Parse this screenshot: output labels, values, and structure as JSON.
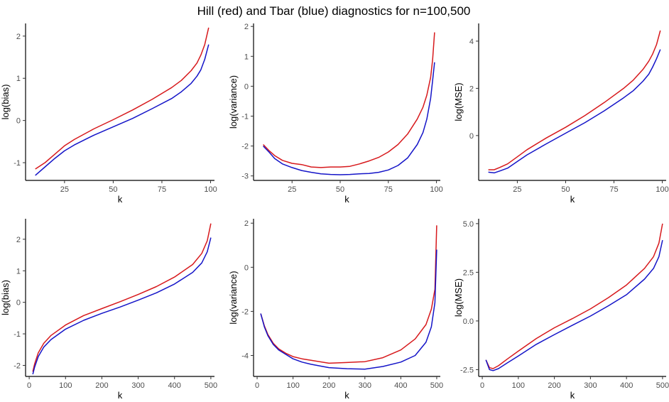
{
  "chart_data": {
    "title": "Hill (red) and Tbar (blue) diagnostics for n=100,500",
    "colors": {
      "hill": "#d7191c",
      "tbar": "#1414c8"
    },
    "panels": [
      {
        "id": "n100-bias",
        "type": "line",
        "xlabel": "k",
        "ylabel": "log(bias)",
        "xlim": [
          5,
          102
        ],
        "ylim": [
          -1.42,
          2.3
        ],
        "xticks": [
          25,
          50,
          75,
          100
        ],
        "yticks": [
          -1,
          0,
          1,
          2
        ],
        "series": [
          {
            "name": "Hill",
            "color": "#d7191c",
            "x": [
              10,
              15,
              20,
              25,
              30,
              40,
              50,
              60,
              70,
              80,
              85,
              90,
              93,
              95,
              97,
              99
            ],
            "y": [
              -1.15,
              -1.0,
              -0.8,
              -0.6,
              -0.45,
              -0.2,
              0.02,
              0.25,
              0.5,
              0.78,
              0.95,
              1.18,
              1.36,
              1.55,
              1.8,
              2.2
            ]
          },
          {
            "name": "Tbar",
            "color": "#1414c8",
            "x": [
              10,
              15,
              20,
              25,
              30,
              40,
              50,
              60,
              70,
              80,
              85,
              90,
              93,
              95,
              97,
              99
            ],
            "y": [
              -1.3,
              -1.1,
              -0.9,
              -0.72,
              -0.58,
              -0.35,
              -0.15,
              0.05,
              0.28,
              0.52,
              0.68,
              0.88,
              1.05,
              1.2,
              1.45,
              1.8
            ]
          }
        ]
      },
      {
        "id": "n100-variance",
        "type": "line",
        "xlabel": "k",
        "ylabel": "log(variance)",
        "xlim": [
          5,
          102
        ],
        "ylim": [
          -3.15,
          2.1
        ],
        "xticks": [
          25,
          50,
          75,
          100
        ],
        "yticks": [
          -3,
          -2,
          -1,
          0,
          1,
          2
        ],
        "series": [
          {
            "name": "Hill",
            "color": "#d7191c",
            "x": [
              10,
              13,
              16,
              20,
              25,
              30,
              35,
              40,
              45,
              50,
              55,
              60,
              65,
              70,
              75,
              80,
              85,
              90,
              93,
              95,
              97,
              98,
              99
            ],
            "y": [
              -1.95,
              -2.15,
              -2.32,
              -2.48,
              -2.58,
              -2.62,
              -2.7,
              -2.72,
              -2.7,
              -2.7,
              -2.68,
              -2.6,
              -2.5,
              -2.38,
              -2.2,
              -1.95,
              -1.6,
              -1.1,
              -0.7,
              -0.3,
              0.3,
              0.9,
              1.8
            ]
          },
          {
            "name": "Tbar",
            "color": "#1414c8",
            "x": [
              10,
              13,
              16,
              20,
              25,
              30,
              35,
              40,
              45,
              50,
              55,
              60,
              65,
              70,
              75,
              80,
              85,
              90,
              93,
              95,
              97,
              98,
              99
            ],
            "y": [
              -2.0,
              -2.2,
              -2.42,
              -2.6,
              -2.72,
              -2.82,
              -2.88,
              -2.93,
              -2.95,
              -2.96,
              -2.95,
              -2.93,
              -2.92,
              -2.88,
              -2.8,
              -2.65,
              -2.4,
              -1.95,
              -1.55,
              -1.1,
              -0.4,
              0.2,
              0.8
            ]
          }
        ]
      },
      {
        "id": "n100-mse",
        "type": "line",
        "xlabel": "k",
        "ylabel": "log(MSE)",
        "xlim": [
          5,
          102
        ],
        "ylim": [
          -1.9,
          4.75
        ],
        "xticks": [
          25,
          50,
          75,
          100
        ],
        "yticks": [
          0,
          2,
          4
        ],
        "series": [
          {
            "name": "Hill",
            "color": "#d7191c",
            "x": [
              10,
              13,
              16,
              20,
              25,
              30,
              40,
              50,
              60,
              70,
              80,
              85,
              90,
              93,
              95,
              97,
              99
            ],
            "y": [
              -1.45,
              -1.45,
              -1.35,
              -1.2,
              -0.9,
              -0.6,
              -0.1,
              0.35,
              0.85,
              1.4,
              2.0,
              2.35,
              2.8,
              3.15,
              3.45,
              3.85,
              4.45
            ]
          },
          {
            "name": "Tbar",
            "color": "#1414c8",
            "x": [
              10,
              13,
              16,
              20,
              25,
              30,
              40,
              50,
              60,
              70,
              80,
              85,
              90,
              93,
              95,
              97,
              99
            ],
            "y": [
              -1.55,
              -1.58,
              -1.5,
              -1.38,
              -1.1,
              -0.82,
              -0.35,
              0.1,
              0.55,
              1.05,
              1.6,
              1.9,
              2.3,
              2.6,
              2.9,
              3.25,
              3.65
            ]
          }
        ]
      },
      {
        "id": "n500-bias",
        "type": "line",
        "xlabel": "k",
        "ylabel": "log(bias)",
        "xlim": [
          -10,
          510
        ],
        "ylim": [
          -2.35,
          2.65
        ],
        "xticks": [
          0,
          100,
          200,
          300,
          400,
          500
        ],
        "yticks": [
          -2,
          -1,
          0,
          1,
          2
        ],
        "series": [
          {
            "name": "Hill",
            "color": "#d7191c",
            "x": [
              10,
              15,
              25,
              40,
              60,
              100,
              150,
              200,
              250,
              300,
              350,
              400,
              450,
              475,
              490,
              500
            ],
            "y": [
              -2.2,
              -1.95,
              -1.6,
              -1.3,
              -1.05,
              -0.72,
              -0.42,
              -0.2,
              0.02,
              0.25,
              0.5,
              0.8,
              1.2,
              1.55,
              1.95,
              2.5
            ]
          },
          {
            "name": "Tbar",
            "color": "#1414c8",
            "x": [
              10,
              15,
              25,
              40,
              60,
              100,
              150,
              200,
              250,
              300,
              350,
              400,
              450,
              475,
              490,
              500
            ],
            "y": [
              -2.28,
              -2.05,
              -1.72,
              -1.42,
              -1.18,
              -0.85,
              -0.57,
              -0.35,
              -0.15,
              0.07,
              0.3,
              0.58,
              0.95,
              1.25,
              1.6,
              2.05
            ]
          }
        ]
      },
      {
        "id": "n500-variance",
        "type": "line",
        "xlabel": "k",
        "ylabel": "log(variance)",
        "xlim": [
          -10,
          510
        ],
        "ylim": [
          -4.95,
          2.2
        ],
        "xticks": [
          0,
          100,
          200,
          300,
          400,
          500
        ],
        "yticks": [
          -4,
          -2,
          0,
          2
        ],
        "series": [
          {
            "name": "Hill",
            "color": "#d7191c",
            "x": [
              10,
              20,
              30,
              45,
              60,
              80,
              100,
              125,
              150,
              200,
              250,
              300,
              350,
              400,
              440,
              470,
              485,
              495,
              500
            ],
            "y": [
              -2.1,
              -2.65,
              -3.05,
              -3.45,
              -3.7,
              -3.9,
              -4.05,
              -4.15,
              -4.22,
              -4.35,
              -4.32,
              -4.28,
              -4.1,
              -3.75,
              -3.25,
              -2.6,
              -1.9,
              -1.0,
              1.9
            ]
          },
          {
            "name": "Tbar",
            "color": "#1414c8",
            "x": [
              10,
              20,
              30,
              45,
              60,
              80,
              100,
              125,
              150,
              200,
              250,
              300,
              350,
              400,
              440,
              470,
              485,
              495,
              500
            ],
            "y": [
              -2.1,
              -2.7,
              -3.1,
              -3.5,
              -3.75,
              -3.95,
              -4.15,
              -4.3,
              -4.4,
              -4.55,
              -4.6,
              -4.62,
              -4.5,
              -4.3,
              -4.0,
              -3.4,
              -2.7,
              -1.6,
              0.8
            ]
          }
        ]
      },
      {
        "id": "n500-mse",
        "type": "line",
        "xlabel": "k",
        "ylabel": "log(MSE)",
        "xlim": [
          -10,
          510
        ],
        "ylim": [
          -2.85,
          5.25
        ],
        "xticks": [
          0,
          100,
          200,
          300,
          400,
          500
        ],
        "yticks": [
          -2.5,
          0.0,
          2.5,
          5.0
        ],
        "yticklabels": [
          "-2.5",
          "0.0",
          "2.5",
          "5.0"
        ],
        "series": [
          {
            "name": "Hill",
            "color": "#d7191c",
            "x": [
              10,
              20,
              30,
              45,
              70,
              100,
              150,
              200,
              250,
              300,
              350,
              400,
              450,
              475,
              490,
              500
            ],
            "y": [
              -2.0,
              -2.4,
              -2.45,
              -2.3,
              -1.95,
              -1.55,
              -0.9,
              -0.35,
              0.12,
              0.62,
              1.2,
              1.85,
              2.7,
              3.3,
              4.0,
              5.0
            ]
          },
          {
            "name": "Tbar",
            "color": "#1414c8",
            "x": [
              10,
              20,
              30,
              45,
              70,
              100,
              150,
              200,
              250,
              300,
              350,
              400,
              450,
              475,
              490,
              500
            ],
            "y": [
              -2.0,
              -2.5,
              -2.55,
              -2.45,
              -2.15,
              -1.8,
              -1.2,
              -0.7,
              -0.22,
              0.25,
              0.78,
              1.35,
              2.15,
              2.7,
              3.3,
              4.15
            ]
          }
        ]
      }
    ]
  }
}
